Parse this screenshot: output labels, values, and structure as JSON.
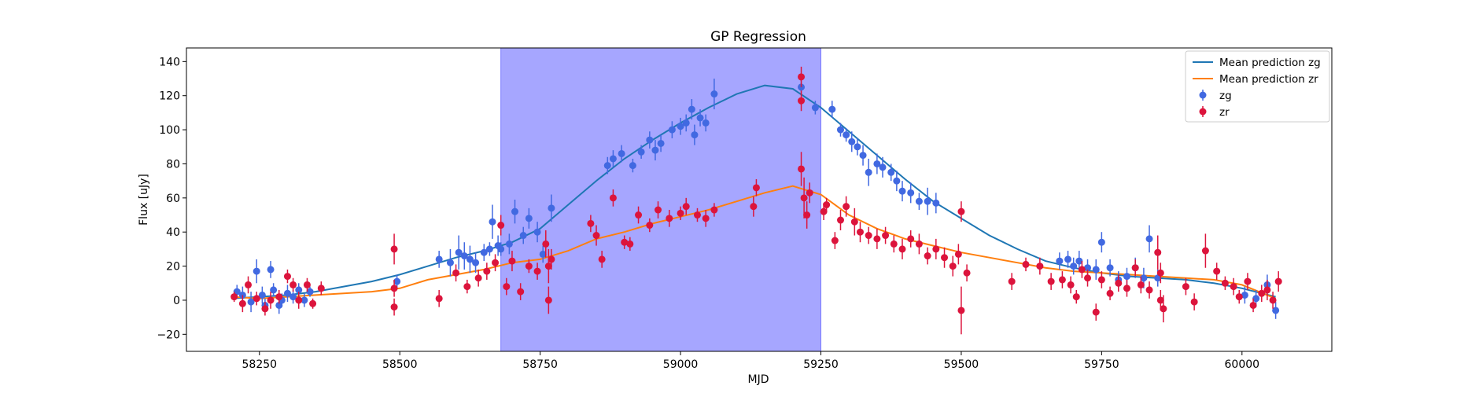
{
  "chart_data": {
    "type": "scatter",
    "title": "GP Regression",
    "xlabel": "MJD",
    "ylabel": "Flux [uJy]",
    "xlim": [
      58120,
      60160
    ],
    "ylim": [
      -30,
      148
    ],
    "xticks": [
      58250,
      58500,
      58750,
      59000,
      59250,
      59500,
      59750,
      60000
    ],
    "yticks": [
      -20,
      0,
      20,
      40,
      60,
      80,
      100,
      120,
      140
    ],
    "grid": false,
    "legend_position": "top-right",
    "shaded_region": {
      "x_start": 58680,
      "x_end": 59250,
      "color": "#a6a6ff"
    },
    "series": [
      {
        "name": "Mean prediction zg",
        "kind": "line",
        "color": "#1f77b4",
        "x": [
          58200,
          58250,
          58300,
          58350,
          58400,
          58450,
          58500,
          58550,
          58600,
          58650,
          58700,
          58750,
          58800,
          58850,
          58900,
          58950,
          59000,
          59050,
          59100,
          59150,
          59200,
          59250,
          59300,
          59350,
          59400,
          59450,
          59500,
          59550,
          59600,
          59650,
          59700,
          59750,
          59800,
          59850,
          59900,
          59950,
          60000,
          60060
        ],
        "y": [
          1,
          2,
          3,
          5,
          8,
          11,
          15,
          20,
          25,
          29,
          34,
          42,
          56,
          70,
          83,
          94,
          104,
          113,
          121,
          126,
          124,
          113,
          99,
          85,
          71,
          58,
          48,
          38,
          30,
          23,
          19,
          16,
          14,
          13,
          12,
          10,
          7,
          2
        ]
      },
      {
        "name": "Mean prediction zr",
        "kind": "line",
        "color": "#ff7f0e",
        "x": [
          58200,
          58250,
          58300,
          58350,
          58400,
          58450,
          58500,
          58550,
          58600,
          58650,
          58700,
          58750,
          58800,
          58850,
          58900,
          58950,
          59000,
          59050,
          59100,
          59150,
          59200,
          59250,
          59300,
          59350,
          59400,
          59450,
          59500,
          59550,
          59600,
          59650,
          59700,
          59750,
          59800,
          59850,
          59900,
          59950,
          60000,
          60060
        ],
        "y": [
          2,
          1,
          2,
          3,
          4,
          5,
          7,
          12,
          15,
          18,
          22,
          24,
          29,
          36,
          40,
          45,
          49,
          53,
          58,
          63,
          67,
          62,
          50,
          42,
          36,
          32,
          28,
          25,
          22,
          19,
          17,
          16,
          15,
          14,
          13,
          12,
          9,
          1
        ]
      },
      {
        "name": "zg",
        "kind": "errorbar",
        "color": "#4169e1",
        "points": [
          [
            58210,
            5,
            4
          ],
          [
            58220,
            3,
            5
          ],
          [
            58235,
            -1,
            6
          ],
          [
            58245,
            17,
            7
          ],
          [
            58255,
            3,
            5
          ],
          [
            58260,
            -3,
            4
          ],
          [
            58270,
            18,
            5
          ],
          [
            58275,
            6,
            4
          ],
          [
            58285,
            -3,
            5
          ],
          [
            58290,
            0,
            4
          ],
          [
            58300,
            4,
            5
          ],
          [
            58310,
            2,
            4
          ],
          [
            58320,
            6,
            4
          ],
          [
            58330,
            0,
            4
          ],
          [
            58340,
            5,
            3
          ],
          [
            58495,
            11,
            4
          ],
          [
            58570,
            24,
            5
          ],
          [
            58590,
            22,
            8
          ],
          [
            58605,
            28,
            10
          ],
          [
            58615,
            26,
            8
          ],
          [
            58625,
            24,
            8
          ],
          [
            58635,
            22,
            6
          ],
          [
            58650,
            28,
            5
          ],
          [
            58660,
            30,
            4
          ],
          [
            58665,
            46,
            10
          ],
          [
            58675,
            32,
            6
          ],
          [
            58680,
            30,
            4
          ],
          [
            58695,
            33,
            6
          ],
          [
            58705,
            52,
            7
          ],
          [
            58720,
            38,
            5
          ],
          [
            58730,
            48,
            6
          ],
          [
            58745,
            40,
            6
          ],
          [
            58755,
            27,
            5
          ],
          [
            58770,
            54,
            8
          ],
          [
            58870,
            79,
            5
          ],
          [
            58880,
            83,
            5
          ],
          [
            58895,
            86,
            5
          ],
          [
            58915,
            79,
            4
          ],
          [
            58930,
            87,
            4
          ],
          [
            58945,
            94,
            5
          ],
          [
            58955,
            88,
            6
          ],
          [
            58965,
            92,
            5
          ],
          [
            58985,
            100,
            5
          ],
          [
            59000,
            102,
            5
          ],
          [
            59010,
            104,
            5
          ],
          [
            59020,
            112,
            6
          ],
          [
            59025,
            97,
            6
          ],
          [
            59035,
            107,
            5
          ],
          [
            59045,
            104,
            5
          ],
          [
            59060,
            121,
            9
          ],
          [
            59215,
            125,
            4
          ],
          [
            59240,
            113,
            4
          ],
          [
            59270,
            112,
            5
          ],
          [
            59285,
            100,
            4
          ],
          [
            59295,
            97,
            4
          ],
          [
            59305,
            93,
            6
          ],
          [
            59315,
            90,
            5
          ],
          [
            59325,
            85,
            6
          ],
          [
            59335,
            75,
            8
          ],
          [
            59350,
            80,
            6
          ],
          [
            59360,
            78,
            6
          ],
          [
            59375,
            75,
            5
          ],
          [
            59385,
            70,
            6
          ],
          [
            59395,
            64,
            6
          ],
          [
            59410,
            63,
            6
          ],
          [
            59425,
            58,
            5
          ],
          [
            59440,
            58,
            8
          ],
          [
            59455,
            57,
            6
          ],
          [
            59675,
            23,
            5
          ],
          [
            59690,
            24,
            5
          ],
          [
            59700,
            20,
            5
          ],
          [
            59710,
            23,
            6
          ],
          [
            59725,
            19,
            5
          ],
          [
            59740,
            18,
            6
          ],
          [
            59750,
            34,
            6
          ],
          [
            59765,
            19,
            5
          ],
          [
            59780,
            12,
            5
          ],
          [
            59795,
            14,
            5
          ],
          [
            59810,
            19,
            6
          ],
          [
            59825,
            13,
            6
          ],
          [
            59835,
            36,
            8
          ],
          [
            59850,
            13,
            5
          ],
          [
            60005,
            3,
            5
          ],
          [
            60025,
            1,
            5
          ],
          [
            60045,
            9,
            6
          ],
          [
            60060,
            -6,
            5
          ]
        ]
      },
      {
        "name": "zr",
        "kind": "errorbar",
        "color": "#dc143c",
        "points": [
          [
            58205,
            2,
            3
          ],
          [
            58220,
            -2,
            5
          ],
          [
            58230,
            9,
            5
          ],
          [
            58245,
            1,
            4
          ],
          [
            58260,
            -5,
            4
          ],
          [
            58270,
            0,
            5
          ],
          [
            58285,
            2,
            4
          ],
          [
            58300,
            14,
            4
          ],
          [
            58310,
            9,
            4
          ],
          [
            58320,
            0,
            5
          ],
          [
            58335,
            9,
            4
          ],
          [
            58345,
            -2,
            3
          ],
          [
            58360,
            7,
            4
          ],
          [
            58490,
            30,
            9
          ],
          [
            58490,
            7,
            5
          ],
          [
            58490,
            -4,
            5
          ],
          [
            58570,
            1,
            5
          ],
          [
            58600,
            16,
            5
          ],
          [
            58620,
            8,
            4
          ],
          [
            58640,
            13,
            5
          ],
          [
            58655,
            17,
            5
          ],
          [
            58670,
            22,
            5
          ],
          [
            58680,
            44,
            6
          ],
          [
            58690,
            8,
            5
          ],
          [
            58700,
            23,
            6
          ],
          [
            58715,
            5,
            5
          ],
          [
            58730,
            20,
            4
          ],
          [
            58745,
            17,
            5
          ],
          [
            58760,
            33,
            8
          ],
          [
            58765,
            20,
            10
          ],
          [
            58765,
            0,
            8
          ],
          [
            58770,
            24,
            6
          ],
          [
            58840,
            45,
            5
          ],
          [
            58850,
            38,
            6
          ],
          [
            58860,
            24,
            5
          ],
          [
            58880,
            60,
            5
          ],
          [
            58900,
            34,
            4
          ],
          [
            58910,
            33,
            4
          ],
          [
            58925,
            50,
            5
          ],
          [
            58945,
            44,
            4
          ],
          [
            58960,
            53,
            5
          ],
          [
            58980,
            48,
            5
          ],
          [
            59000,
            51,
            4
          ],
          [
            59010,
            55,
            5
          ],
          [
            59030,
            50,
            4
          ],
          [
            59045,
            48,
            5
          ],
          [
            59060,
            53,
            4
          ],
          [
            59130,
            55,
            6
          ],
          [
            59135,
            66,
            5
          ],
          [
            59215,
            131,
            6
          ],
          [
            59215,
            117,
            6
          ],
          [
            59215,
            77,
            10
          ],
          [
            59220,
            60,
            12
          ],
          [
            59225,
            50,
            8
          ],
          [
            59230,
            63,
            6
          ],
          [
            59255,
            52,
            5
          ],
          [
            59260,
            56,
            4
          ],
          [
            59275,
            35,
            5
          ],
          [
            59285,
            47,
            6
          ],
          [
            59295,
            55,
            6
          ],
          [
            59310,
            46,
            8
          ],
          [
            59320,
            40,
            6
          ],
          [
            59335,
            38,
            5
          ],
          [
            59350,
            36,
            6
          ],
          [
            59365,
            38,
            5
          ],
          [
            59380,
            33,
            5
          ],
          [
            59395,
            30,
            6
          ],
          [
            59410,
            36,
            5
          ],
          [
            59425,
            33,
            6
          ],
          [
            59440,
            26,
            5
          ],
          [
            59455,
            30,
            6
          ],
          [
            59470,
            25,
            6
          ],
          [
            59485,
            20,
            6
          ],
          [
            59495,
            27,
            6
          ],
          [
            59500,
            52,
            6
          ],
          [
            59500,
            -6,
            14
          ],
          [
            59510,
            16,
            5
          ],
          [
            59590,
            11,
            5
          ],
          [
            59615,
            21,
            4
          ],
          [
            59640,
            20,
            5
          ],
          [
            59660,
            11,
            5
          ],
          [
            59680,
            12,
            5
          ],
          [
            59695,
            9,
            5
          ],
          [
            59705,
            2,
            4
          ],
          [
            59715,
            18,
            5
          ],
          [
            59725,
            13,
            5
          ],
          [
            59740,
            -7,
            5
          ],
          [
            59750,
            12,
            5
          ],
          [
            59765,
            4,
            4
          ],
          [
            59780,
            10,
            5
          ],
          [
            59795,
            7,
            5
          ],
          [
            59810,
            19,
            5
          ],
          [
            59820,
            9,
            5
          ],
          [
            59835,
            6,
            5
          ],
          [
            59850,
            28,
            10
          ],
          [
            59855,
            16,
            6
          ],
          [
            59855,
            0,
            6
          ],
          [
            59860,
            -5,
            8
          ],
          [
            59900,
            8,
            5
          ],
          [
            59915,
            -1,
            5
          ],
          [
            59935,
            29,
            10
          ],
          [
            59955,
            17,
            5
          ],
          [
            59970,
            10,
            4
          ],
          [
            59985,
            8,
            5
          ],
          [
            59995,
            2,
            4
          ],
          [
            60010,
            11,
            5
          ],
          [
            60020,
            -3,
            4
          ],
          [
            60035,
            4,
            5
          ],
          [
            60045,
            6,
            6
          ],
          [
            60055,
            0,
            5
          ],
          [
            60065,
            11,
            6
          ]
        ]
      }
    ]
  }
}
